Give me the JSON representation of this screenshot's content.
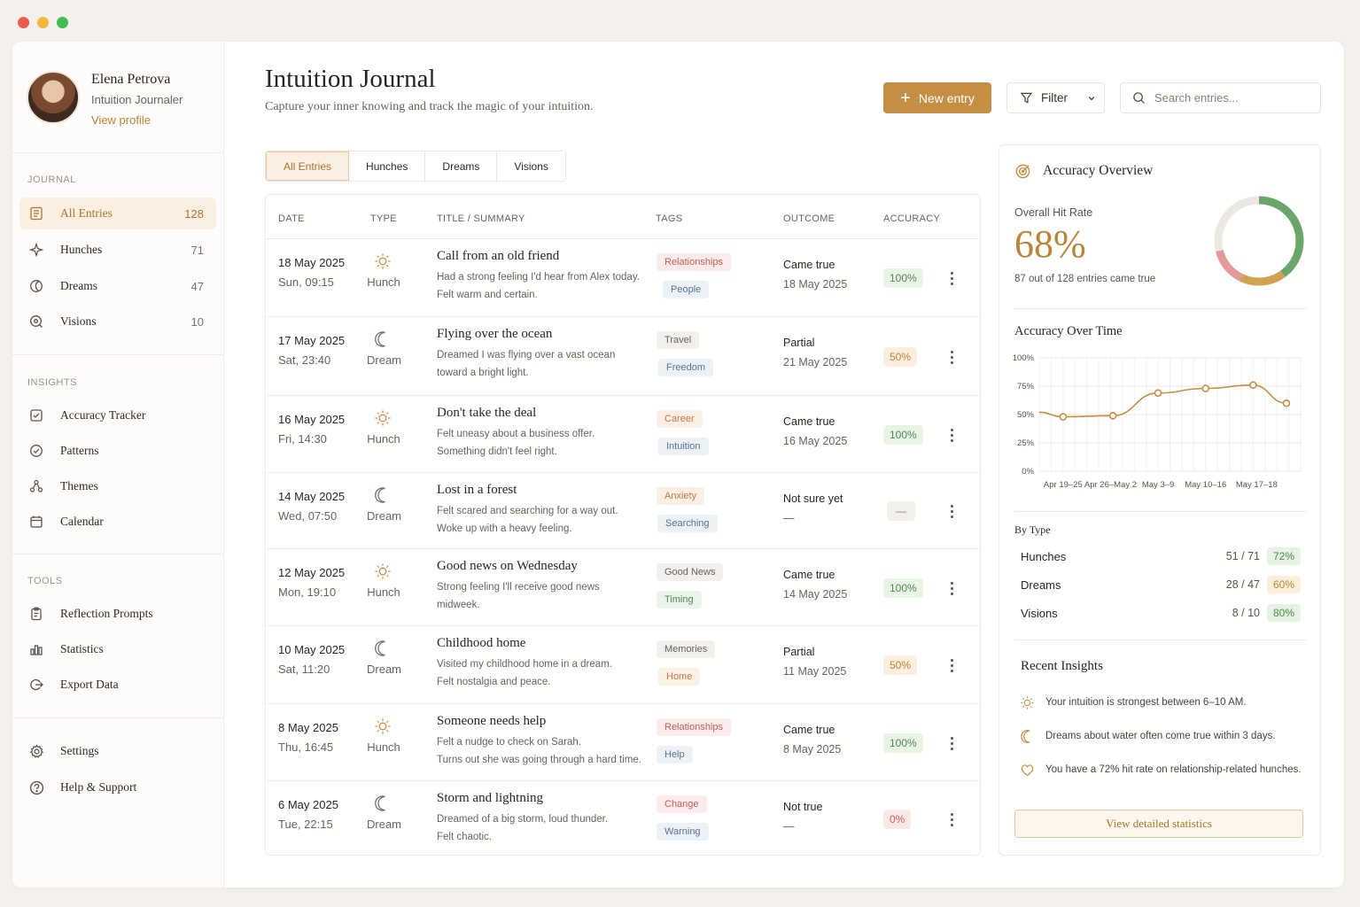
{
  "profile": {
    "name": "Elena Petrova",
    "role": "Intuition Journaler",
    "link": "View profile"
  },
  "sidebar": {
    "journal_label": "JOURNAL",
    "journal": [
      {
        "label": "All Entries",
        "count": "128",
        "icon": "list-icon"
      },
      {
        "label": "Hunches",
        "count": "71",
        "icon": "sparkle-icon"
      },
      {
        "label": "Dreams",
        "count": "47",
        "icon": "moon-icon"
      },
      {
        "label": "Visions",
        "count": "10",
        "icon": "eye-icon"
      }
    ],
    "insights_label": "INSIGHTS",
    "insights": [
      {
        "label": "Accuracy Tracker",
        "icon": "check-square-icon"
      },
      {
        "label": "Patterns",
        "icon": "badge-check-icon"
      },
      {
        "label": "Themes",
        "icon": "nodes-icon"
      },
      {
        "label": "Calendar",
        "icon": "calendar-icon"
      }
    ],
    "tools_label": "TOOLS",
    "tools": [
      {
        "label": "Reflection Prompts",
        "icon": "clipboard-icon"
      },
      {
        "label": "Statistics",
        "icon": "bar-chart-icon"
      },
      {
        "label": "Export Data",
        "icon": "export-icon"
      }
    ],
    "bottom": [
      {
        "label": "Settings",
        "icon": "gear-icon"
      },
      {
        "label": "Help & Support",
        "icon": "help-icon"
      }
    ]
  },
  "header": {
    "title": "Intuition Journal",
    "subtitle": "Capture your inner knowing and track the magic of your intuition.",
    "new_entry": "New entry",
    "filter": "Filter",
    "search_placeholder": "Search entries..."
  },
  "tabs": [
    "All Entries",
    "Hunches",
    "Dreams",
    "Visions"
  ],
  "table": {
    "headers": [
      "DATE",
      "TYPE",
      "TITLE / SUMMARY",
      "TAGS",
      "OUTCOME",
      "ACCURACY"
    ],
    "rows": [
      {
        "date": "18 May 2025",
        "time": "Sun, 09:15",
        "type": "Hunch",
        "title": "Call from an old friend",
        "summary1": "Had a strong feeling I'd hear from Alex today.",
        "summary2": "Felt warm and certain.",
        "tag1": "Relationships",
        "tag2": "People",
        "outcome": "Came true",
        "odate": "18 May 2025",
        "accuracy": "100%"
      },
      {
        "date": "17 May 2025",
        "time": "Sat, 23:40",
        "type": "Dream",
        "title": "Flying over the ocean",
        "summary1": "Dreamed I was flying over a vast ocean",
        "summary2": "toward a bright light.",
        "tag1": "Travel",
        "tag2": "Freedom",
        "outcome": "Partial",
        "odate": "21 May 2025",
        "accuracy": "50%"
      },
      {
        "date": "16 May 2025",
        "time": "Fri, 14:30",
        "type": "Hunch",
        "title": "Don't take the deal",
        "summary1": "Felt uneasy about a business offer.",
        "summary2": "Something didn't feel right.",
        "tag1": "Career",
        "tag2": "Intuition",
        "outcome": "Came true",
        "odate": "16 May 2025",
        "accuracy": "100%"
      },
      {
        "date": "14 May 2025",
        "time": "Wed, 07:50",
        "type": "Dream",
        "title": "Lost in a forest",
        "summary1": "Felt scared and searching for a way out.",
        "summary2": "Woke up with a heavy feeling.",
        "tag1": "Anxiety",
        "tag2": "Searching",
        "outcome": "Not sure yet",
        "odate": "—",
        "accuracy": "—"
      },
      {
        "date": "12 May 2025",
        "time": "Mon, 19:10",
        "type": "Hunch",
        "title": "Good news on Wednesday",
        "summary1": "Strong feeling I'll receive good news",
        "summary2": "midweek.",
        "tag1": "Good News",
        "tag2": "Timing",
        "outcome": "Came true",
        "odate": "14 May 2025",
        "accuracy": "100%"
      },
      {
        "date": "10 May 2025",
        "time": "Sat, 11:20",
        "type": "Dream",
        "title": "Childhood home",
        "summary1": "Visited my childhood home in a dream.",
        "summary2": "Felt nostalgia and peace.",
        "tag1": "Memories",
        "tag2": "Home",
        "outcome": "Partial",
        "odate": "11 May 2025",
        "accuracy": "50%"
      },
      {
        "date": "8 May 2025",
        "time": "Thu, 16:45",
        "type": "Hunch",
        "title": "Someone needs help",
        "summary1": "Felt a nudge to check on Sarah.",
        "summary2": "Turns out she was going through a hard time.",
        "tag1": "Relationships",
        "tag2": "Help",
        "outcome": "Came true",
        "odate": "8 May 2025",
        "accuracy": "100%"
      },
      {
        "date": "6 May 2025",
        "time": "Tue, 22:15",
        "type": "Dream",
        "title": "Storm and lightning",
        "summary1": "Dreamed of a big storm, loud thunder.",
        "summary2": "Felt chaotic.",
        "tag1": "Change",
        "tag2": "Warning",
        "outcome": "Not true",
        "odate": "—",
        "accuracy": "0%"
      }
    ]
  },
  "panel": {
    "title": "Accuracy Overview",
    "hit_label": "Overall Hit Rate",
    "hit_rate": "68%",
    "hit_fraction": 0.68,
    "hit_sub": "87 out of 128 entries came true",
    "over_time_title": "Accuracy Over Time",
    "by_type_title": "By Type",
    "by_type": [
      {
        "name": "Hunches",
        "ratio": "51 / 71",
        "pct": "72%"
      },
      {
        "name": "Dreams",
        "ratio": "28 / 47",
        "pct": "60%"
      },
      {
        "name": "Visions",
        "ratio": "8 / 10",
        "pct": "80%"
      }
    ],
    "insights_title": "Recent Insights",
    "insights": [
      "Your intuition is strongest between 6–10 AM.",
      "Dreams about water often come true within 3 days.",
      "You have a 72% hit rate on relationship-related hunches."
    ],
    "stats_button": "View detailed statistics"
  },
  "chart_data": {
    "type": "line",
    "title": "Accuracy Over Time",
    "x_ticks": [
      "Apr 19–25",
      "Apr 26–May 2",
      "May 3–9",
      "May 10–16",
      "May 17–18"
    ],
    "y_ticks": [
      "100%",
      "75%",
      "50%",
      "25%",
      "0%"
    ],
    "ylim": [
      0,
      100
    ],
    "points": [
      {
        "x": 0.5,
        "y": 48
      },
      {
        "x": 1.55,
        "y": 49
      },
      {
        "x": 2.5,
        "y": 69
      },
      {
        "x": 3.5,
        "y": 73
      },
      {
        "x": 4.5,
        "y": 76
      },
      {
        "x": 5.2,
        "y": 60
      }
    ],
    "color": "#c48e45",
    "grid": true
  },
  "colors": {
    "accent": "#c48e45",
    "green": "#6aa56a",
    "red": "#e59a9a"
  }
}
